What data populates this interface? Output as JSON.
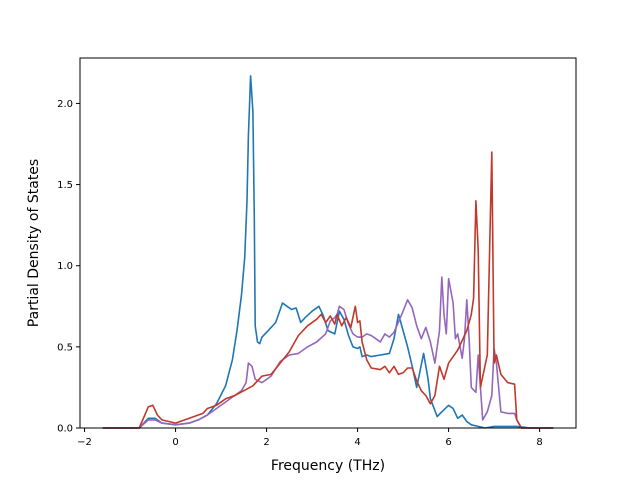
{
  "chart_data": {
    "type": "line",
    "title": "",
    "xlabel": "Frequency (THz)",
    "ylabel": "Partial Density of States",
    "xlim": [
      -2.1,
      8.8
    ],
    "ylim": [
      0.0,
      2.28
    ],
    "xticks": [
      -2,
      0,
      2,
      4,
      6,
      8
    ],
    "xtick_labels": [
      "−2",
      "0",
      "2",
      "4",
      "6",
      "8"
    ],
    "yticks": [
      0.0,
      0.5,
      1.0,
      1.5,
      2.0
    ],
    "ytick_labels": [
      "0.0",
      "0.5",
      "1.0",
      "1.5",
      "2.0"
    ],
    "grid": false,
    "legend": "none",
    "series": [
      {
        "color": "#1f77b4",
        "points": [
          [
            -1.6,
            0.0
          ],
          [
            -0.8,
            0.0
          ],
          [
            -0.6,
            0.06
          ],
          [
            -0.45,
            0.06
          ],
          [
            -0.3,
            0.03
          ],
          [
            0.0,
            0.02
          ],
          [
            0.3,
            0.03
          ],
          [
            0.5,
            0.05
          ],
          [
            0.7,
            0.08
          ],
          [
            0.9,
            0.15
          ],
          [
            1.1,
            0.26
          ],
          [
            1.25,
            0.42
          ],
          [
            1.35,
            0.6
          ],
          [
            1.45,
            0.82
          ],
          [
            1.52,
            1.05
          ],
          [
            1.57,
            1.4
          ],
          [
            1.6,
            1.8
          ],
          [
            1.65,
            2.17
          ],
          [
            1.7,
            1.95
          ],
          [
            1.73,
            1.3
          ],
          [
            1.75,
            0.63
          ],
          [
            1.8,
            0.53
          ],
          [
            1.85,
            0.52
          ],
          [
            1.9,
            0.56
          ],
          [
            2.0,
            0.59
          ],
          [
            2.2,
            0.65
          ],
          [
            2.35,
            0.77
          ],
          [
            2.45,
            0.75
          ],
          [
            2.55,
            0.73
          ],
          [
            2.65,
            0.74
          ],
          [
            2.75,
            0.65
          ],
          [
            2.85,
            0.68
          ],
          [
            3.0,
            0.72
          ],
          [
            3.15,
            0.75
          ],
          [
            3.25,
            0.69
          ],
          [
            3.35,
            0.6
          ],
          [
            3.5,
            0.58
          ],
          [
            3.6,
            0.72
          ],
          [
            3.7,
            0.67
          ],
          [
            3.8,
            0.57
          ],
          [
            3.9,
            0.5
          ],
          [
            4.0,
            0.49
          ],
          [
            4.05,
            0.5
          ],
          [
            4.1,
            0.44
          ],
          [
            4.2,
            0.45
          ],
          [
            4.3,
            0.44
          ],
          [
            4.5,
            0.45
          ],
          [
            4.7,
            0.46
          ],
          [
            4.8,
            0.55
          ],
          [
            4.9,
            0.7
          ],
          [
            5.0,
            0.6
          ],
          [
            5.1,
            0.5
          ],
          [
            5.2,
            0.38
          ],
          [
            5.3,
            0.25
          ],
          [
            5.45,
            0.46
          ],
          [
            5.55,
            0.3
          ],
          [
            5.6,
            0.18
          ],
          [
            5.75,
            0.07
          ],
          [
            5.85,
            0.1
          ],
          [
            6.0,
            0.14
          ],
          [
            6.1,
            0.12
          ],
          [
            6.2,
            0.06
          ],
          [
            6.3,
            0.08
          ],
          [
            6.4,
            0.04
          ],
          [
            6.5,
            0.02
          ],
          [
            6.65,
            0.01
          ],
          [
            6.8,
            0.0
          ],
          [
            7.0,
            0.01
          ],
          [
            7.2,
            0.01
          ],
          [
            7.5,
            0.01
          ],
          [
            7.8,
            0.0
          ],
          [
            8.3,
            0.0
          ]
        ]
      },
      {
        "color": "#9467bd",
        "points": [
          [
            -1.6,
            0.0
          ],
          [
            -0.8,
            0.0
          ],
          [
            -0.6,
            0.05
          ],
          [
            -0.45,
            0.05
          ],
          [
            -0.3,
            0.03
          ],
          [
            0.0,
            0.02
          ],
          [
            0.3,
            0.03
          ],
          [
            0.5,
            0.05
          ],
          [
            0.7,
            0.08
          ],
          [
            0.9,
            0.12
          ],
          [
            1.1,
            0.16
          ],
          [
            1.3,
            0.2
          ],
          [
            1.45,
            0.23
          ],
          [
            1.55,
            0.28
          ],
          [
            1.6,
            0.4
          ],
          [
            1.68,
            0.38
          ],
          [
            1.75,
            0.3
          ],
          [
            1.9,
            0.28
          ],
          [
            2.1,
            0.32
          ],
          [
            2.3,
            0.41
          ],
          [
            2.5,
            0.45
          ],
          [
            2.7,
            0.46
          ],
          [
            2.9,
            0.5
          ],
          [
            3.1,
            0.53
          ],
          [
            3.3,
            0.58
          ],
          [
            3.4,
            0.66
          ],
          [
            3.5,
            0.68
          ],
          [
            3.55,
            0.7
          ],
          [
            3.6,
            0.75
          ],
          [
            3.7,
            0.73
          ],
          [
            3.8,
            0.64
          ],
          [
            3.9,
            0.58
          ],
          [
            4.0,
            0.56
          ],
          [
            4.1,
            0.56
          ],
          [
            4.2,
            0.58
          ],
          [
            4.3,
            0.57
          ],
          [
            4.4,
            0.55
          ],
          [
            4.5,
            0.53
          ],
          [
            4.6,
            0.58
          ],
          [
            4.7,
            0.56
          ],
          [
            4.8,
            0.59
          ],
          [
            5.0,
            0.72
          ],
          [
            5.1,
            0.79
          ],
          [
            5.2,
            0.74
          ],
          [
            5.3,
            0.63
          ],
          [
            5.4,
            0.55
          ],
          [
            5.5,
            0.62
          ],
          [
            5.6,
            0.53
          ],
          [
            5.7,
            0.4
          ],
          [
            5.8,
            0.6
          ],
          [
            5.85,
            0.93
          ],
          [
            5.9,
            0.7
          ],
          [
            5.95,
            0.58
          ],
          [
            6.0,
            0.92
          ],
          [
            6.1,
            0.77
          ],
          [
            6.15,
            0.55
          ],
          [
            6.2,
            0.58
          ],
          [
            6.3,
            0.43
          ],
          [
            6.35,
            0.55
          ],
          [
            6.4,
            0.79
          ],
          [
            6.45,
            0.55
          ],
          [
            6.5,
            0.25
          ],
          [
            6.6,
            0.22
          ],
          [
            6.65,
            0.45
          ],
          [
            6.75,
            0.05
          ],
          [
            6.85,
            0.1
          ],
          [
            6.95,
            0.2
          ],
          [
            7.0,
            0.49
          ],
          [
            7.05,
            0.4
          ],
          [
            7.15,
            0.1
          ],
          [
            7.3,
            0.09
          ],
          [
            7.45,
            0.09
          ],
          [
            7.5,
            0.05
          ],
          [
            7.6,
            0.0
          ],
          [
            8.3,
            0.0
          ]
        ]
      },
      {
        "color": "#c0392b",
        "points": [
          [
            -1.6,
            0.0
          ],
          [
            -0.8,
            0.0
          ],
          [
            -0.6,
            0.13
          ],
          [
            -0.5,
            0.14
          ],
          [
            -0.4,
            0.08
          ],
          [
            -0.3,
            0.05
          ],
          [
            0.0,
            0.03
          ],
          [
            0.2,
            0.05
          ],
          [
            0.4,
            0.07
          ],
          [
            0.6,
            0.09
          ],
          [
            0.7,
            0.12
          ],
          [
            0.9,
            0.14
          ],
          [
            1.1,
            0.18
          ],
          [
            1.3,
            0.2
          ],
          [
            1.5,
            0.23
          ],
          [
            1.7,
            0.26
          ],
          [
            1.8,
            0.29
          ],
          [
            1.9,
            0.32
          ],
          [
            2.1,
            0.33
          ],
          [
            2.3,
            0.4
          ],
          [
            2.5,
            0.47
          ],
          [
            2.7,
            0.57
          ],
          [
            2.9,
            0.63
          ],
          [
            3.1,
            0.67
          ],
          [
            3.2,
            0.7
          ],
          [
            3.3,
            0.65
          ],
          [
            3.4,
            0.69
          ],
          [
            3.5,
            0.64
          ],
          [
            3.55,
            0.7
          ],
          [
            3.65,
            0.63
          ],
          [
            3.75,
            0.68
          ],
          [
            3.85,
            0.62
          ],
          [
            3.95,
            0.75
          ],
          [
            4.0,
            0.65
          ],
          [
            4.05,
            0.66
          ],
          [
            4.1,
            0.53
          ],
          [
            4.2,
            0.42
          ],
          [
            4.3,
            0.37
          ],
          [
            4.5,
            0.36
          ],
          [
            4.6,
            0.38
          ],
          [
            4.7,
            0.34
          ],
          [
            4.8,
            0.38
          ],
          [
            4.9,
            0.33
          ],
          [
            5.0,
            0.34
          ],
          [
            5.1,
            0.37
          ],
          [
            5.2,
            0.37
          ],
          [
            5.3,
            0.29
          ],
          [
            5.4,
            0.23
          ],
          [
            5.5,
            0.2
          ],
          [
            5.6,
            0.15
          ],
          [
            5.7,
            0.2
          ],
          [
            5.8,
            0.38
          ],
          [
            5.9,
            0.3
          ],
          [
            6.0,
            0.4
          ],
          [
            6.2,
            0.48
          ],
          [
            6.4,
            0.6
          ],
          [
            6.5,
            0.7
          ],
          [
            6.55,
            0.8
          ],
          [
            6.6,
            1.4
          ],
          [
            6.65,
            1.1
          ],
          [
            6.7,
            0.25
          ],
          [
            6.85,
            0.45
          ],
          [
            6.95,
            1.7
          ],
          [
            7.0,
            0.4
          ],
          [
            7.05,
            0.45
          ],
          [
            7.15,
            0.33
          ],
          [
            7.3,
            0.28
          ],
          [
            7.45,
            0.27
          ],
          [
            7.5,
            0.05
          ],
          [
            7.6,
            0.0
          ],
          [
            8.3,
            0.0
          ]
        ]
      }
    ]
  }
}
